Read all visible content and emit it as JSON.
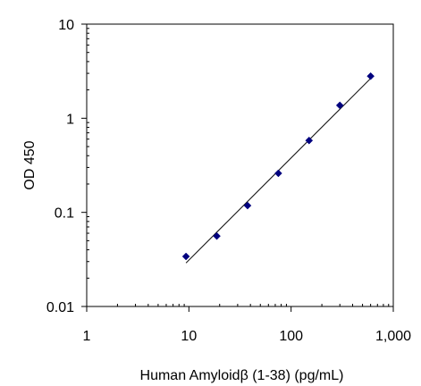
{
  "chart_data": {
    "type": "scatter",
    "title": "",
    "xlabel": "Human Amyloidβ (1-38) (pg/mL)",
    "ylabel": "OD 450",
    "x_scale": "log",
    "y_scale": "log",
    "xlim": [
      1,
      1000
    ],
    "ylim": [
      0.01,
      10
    ],
    "x_ticks": [
      1,
      10,
      100,
      1000
    ],
    "x_tick_labels": [
      "1",
      "10",
      "100",
      "1,000"
    ],
    "y_ticks": [
      0.01,
      0.1,
      1,
      10
    ],
    "y_tick_labels": [
      "0.01",
      "0.1",
      "1",
      "10"
    ],
    "grid": false,
    "legend": "none",
    "series": [
      {
        "x": [
          9.375,
          18.75,
          37.5,
          75,
          150,
          300,
          600
        ],
        "y": [
          0.034,
          0.056,
          0.118,
          0.26,
          0.58,
          1.37,
          2.8
        ],
        "color": "#00007f",
        "marker": "diamond"
      }
    ],
    "fit_line": {
      "x": [
        9.375,
        600
      ],
      "y": [
        0.029,
        2.65
      ],
      "color": "#000000"
    }
  }
}
